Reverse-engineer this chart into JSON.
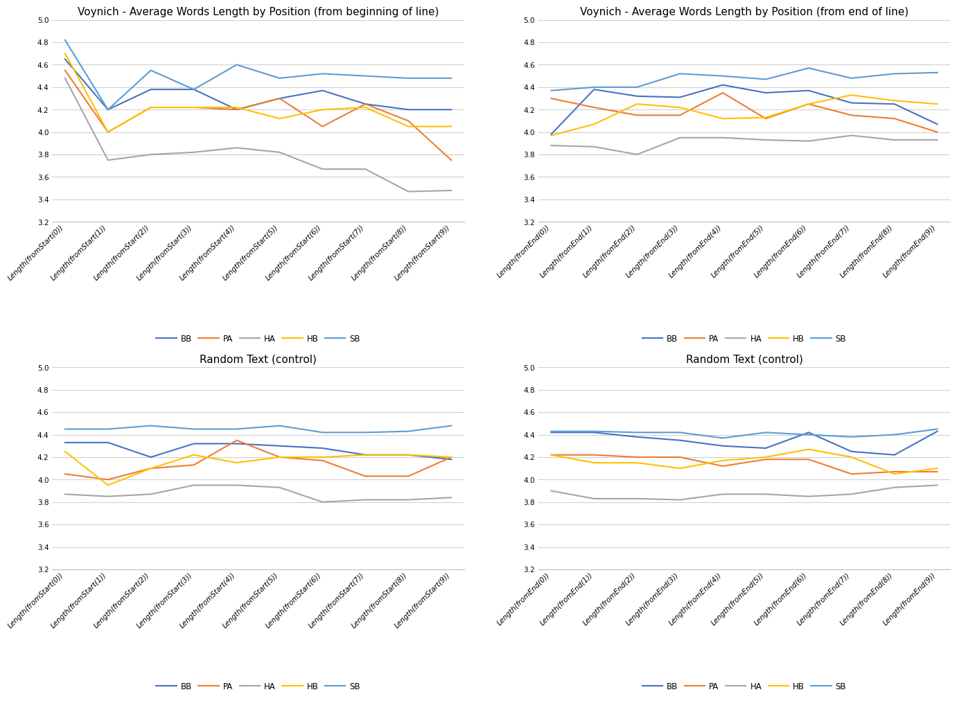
{
  "colors": {
    "BB": "#4472C4",
    "PA": "#ED7D31",
    "HA": "#A5A5A5",
    "HB": "#FFC000",
    "SB": "#5B9BD5"
  },
  "voynich_start": {
    "title": "Voynich - Average Words Length by Position (from beginning of line)",
    "x_labels": [
      "Length(fromStart(0))",
      "Length(fromStart(1))",
      "Length(fromStart(2))",
      "Length(fromStart(3))",
      "Length(fromStart(4))",
      "Length(fromStart(5))",
      "Length(fromStart(6))",
      "Length(fromStart(7))",
      "Length(fromStart(8))",
      "Length(fromStart(9))"
    ],
    "BB": [
      4.65,
      4.2,
      4.38,
      4.38,
      4.2,
      4.3,
      4.37,
      4.25,
      4.2,
      4.2
    ],
    "PA": [
      4.55,
      4.0,
      4.22,
      4.22,
      4.2,
      4.3,
      4.05,
      4.25,
      4.1,
      3.75
    ],
    "HA": [
      4.48,
      3.75,
      3.8,
      3.82,
      3.86,
      3.82,
      3.67,
      3.67,
      3.47,
      3.48
    ],
    "HB": [
      4.7,
      4.0,
      4.22,
      4.22,
      4.22,
      4.12,
      4.2,
      4.22,
      4.05,
      4.05
    ],
    "SB": [
      4.82,
      4.2,
      4.55,
      4.38,
      4.6,
      4.48,
      4.52,
      4.5,
      4.48,
      4.48
    ]
  },
  "voynich_end": {
    "title": "Voynich - Average Words Length by Position (from end of line)",
    "x_labels": [
      "Length(fromEnd(0))",
      "Length(fromEnd(1))",
      "Length(fromEnd(2))",
      "Length(fromEnd(3))",
      "Length(fromEnd(4))",
      "Length(fromEnd(5))",
      "Length(fromEnd(6))",
      "Length(fromEnd(7))",
      "Length(fromEnd(8))",
      "Length(fromEnd(9))"
    ],
    "BB": [
      3.98,
      4.38,
      4.32,
      4.31,
      4.42,
      4.35,
      4.37,
      4.26,
      4.25,
      4.07
    ],
    "PA": [
      4.3,
      4.22,
      4.15,
      4.15,
      4.35,
      4.12,
      4.25,
      4.15,
      4.12,
      4.0
    ],
    "HA": [
      3.88,
      3.87,
      3.8,
      3.95,
      3.95,
      3.93,
      3.92,
      3.97,
      3.93,
      3.93
    ],
    "HB": [
      3.97,
      4.07,
      4.25,
      4.22,
      4.12,
      4.13,
      4.25,
      4.33,
      4.28,
      4.25
    ],
    "SB": [
      4.37,
      4.4,
      4.4,
      4.52,
      4.5,
      4.47,
      4.57,
      4.48,
      4.52,
      4.53
    ]
  },
  "random_start": {
    "title": "Random Text (control)",
    "x_labels": [
      "Length(fromStart(0))",
      "Length(fromStart(1))",
      "Length(fromStart(2))",
      "Length(fromStart(3))",
      "Length(fromStart(4))",
      "Length(fromStart(5))",
      "Length(fromStart(6))",
      "Length(fromStart(7))",
      "Length(fromStart(8))",
      "Length(fromStart(9))"
    ],
    "BB": [
      4.33,
      4.33,
      4.2,
      4.32,
      4.32,
      4.3,
      4.28,
      4.22,
      4.22,
      4.18
    ],
    "PA": [
      4.05,
      4.0,
      4.1,
      4.13,
      4.35,
      4.2,
      4.17,
      4.03,
      4.03,
      4.2
    ],
    "HA": [
      3.87,
      3.85,
      3.87,
      3.95,
      3.95,
      3.93,
      3.8,
      3.82,
      3.82,
      3.84
    ],
    "HB": [
      4.25,
      3.95,
      4.1,
      4.22,
      4.15,
      4.2,
      4.2,
      4.22,
      4.22,
      4.2
    ],
    "SB": [
      4.45,
      4.45,
      4.48,
      4.45,
      4.45,
      4.48,
      4.42,
      4.42,
      4.43,
      4.48
    ]
  },
  "random_end": {
    "title": "Random Text (control)",
    "x_labels": [
      "Length(fromEnd(0))",
      "Length(fromEnd(1))",
      "Length(fromEnd(2))",
      "Length(fromEnd(3))",
      "Length(fromEnd(4))",
      "Length(fromEnd(5))",
      "Length(fromEnd(6))",
      "Length(fromEnd(7))",
      "Length(fromEnd(8))",
      "Length(fromEnd(9))"
    ],
    "BB": [
      4.42,
      4.42,
      4.38,
      4.35,
      4.3,
      4.28,
      4.42,
      4.25,
      4.22,
      4.43
    ],
    "PA": [
      4.22,
      4.22,
      4.2,
      4.2,
      4.12,
      4.18,
      4.18,
      4.05,
      4.07,
      4.07
    ],
    "HA": [
      3.9,
      3.83,
      3.83,
      3.82,
      3.87,
      3.87,
      3.85,
      3.87,
      3.93,
      3.95
    ],
    "HB": [
      4.22,
      4.15,
      4.15,
      4.1,
      4.17,
      4.2,
      4.27,
      4.2,
      4.05,
      4.1
    ],
    "SB": [
      4.43,
      4.43,
      4.42,
      4.42,
      4.37,
      4.42,
      4.4,
      4.38,
      4.4,
      4.45
    ]
  },
  "ylim": [
    3.2,
    5.0
  ],
  "yticks": [
    3.2,
    3.4,
    3.6,
    3.8,
    4.0,
    4.2,
    4.4,
    4.6,
    4.8,
    5.0
  ],
  "legend_entries": [
    "BB",
    "PA",
    "HA",
    "HB",
    "SB"
  ],
  "title_fontsize": 11,
  "tick_fontsize": 7.5,
  "legend_fontsize": 8.5,
  "line_width": 1.5,
  "bg_color": "#FFFFFF",
  "grid_color": "#D0D0D0"
}
